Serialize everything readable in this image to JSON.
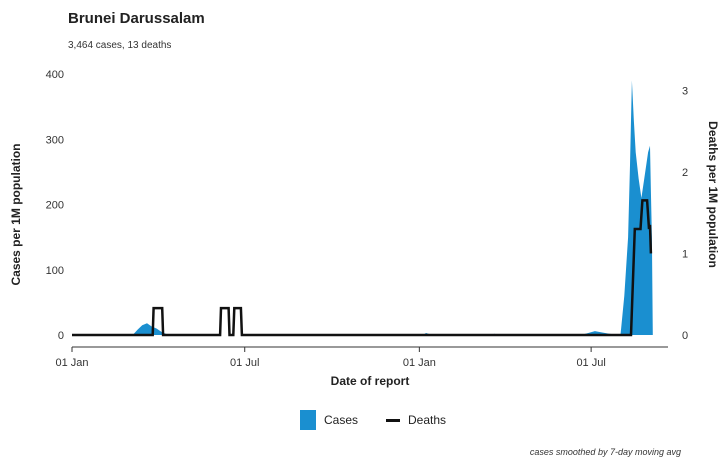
{
  "title": "Brunei Darussalam",
  "subtitle": "3,464 cases, 13 deaths",
  "footnote": "cases smoothed by 7-day moving avg",
  "legend": {
    "cases_label": "Cases",
    "deaths_label": "Deaths"
  },
  "colors": {
    "cases": "#1a8fd0",
    "deaths": "#111111",
    "axis": "#333333"
  },
  "chart_data": {
    "type": "area",
    "xlabel": "Date of report",
    "ylabel_left": "Cases per 1M population",
    "ylabel_right": "Deaths per 1M population",
    "x_domain": [
      "2020-01-01",
      "2021-09-20"
    ],
    "ylim_left": [
      0,
      400
    ],
    "ylim_right": [
      0,
      3.2
    ],
    "yticks_left": [
      0,
      100,
      200,
      300,
      400
    ],
    "yticks_right": [
      0,
      1,
      2,
      3
    ],
    "xticks": [
      {
        "date": "2020-01-01",
        "label": "01 Jan"
      },
      {
        "date": "2020-07-01",
        "label": "01 Jul"
      },
      {
        "date": "2021-01-01",
        "label": "01 Jan"
      },
      {
        "date": "2021-07-01",
        "label": "01 Jul"
      }
    ],
    "series": [
      {
        "name": "Cases",
        "axis": "left",
        "kind": "area",
        "points": [
          [
            "2020-01-01",
            0
          ],
          [
            "2020-03-05",
            0
          ],
          [
            "2020-03-10",
            8
          ],
          [
            "2020-03-15",
            15
          ],
          [
            "2020-03-20",
            18
          ],
          [
            "2020-03-25",
            13
          ],
          [
            "2020-03-30",
            10
          ],
          [
            "2020-04-05",
            4
          ],
          [
            "2020-04-12",
            0
          ],
          [
            "2021-01-05",
            0
          ],
          [
            "2021-01-08",
            3
          ],
          [
            "2021-01-12",
            1
          ],
          [
            "2021-01-16",
            0
          ],
          [
            "2021-03-18",
            0
          ],
          [
            "2021-03-21",
            2
          ],
          [
            "2021-03-24",
            0
          ],
          [
            "2021-06-20",
            0
          ],
          [
            "2021-06-28",
            3
          ],
          [
            "2021-07-05",
            6
          ],
          [
            "2021-07-12",
            4
          ],
          [
            "2021-07-20",
            2
          ],
          [
            "2021-08-01",
            0
          ],
          [
            "2021-08-05",
            60
          ],
          [
            "2021-08-09",
            150
          ],
          [
            "2021-08-11",
            260
          ],
          [
            "2021-08-13",
            390
          ],
          [
            "2021-08-15",
            330
          ],
          [
            "2021-08-17",
            280
          ],
          [
            "2021-08-20",
            240
          ],
          [
            "2021-08-23",
            210
          ],
          [
            "2021-08-26",
            240
          ],
          [
            "2021-08-30",
            280
          ],
          [
            "2021-09-01",
            290
          ],
          [
            "2021-09-02",
            220
          ],
          [
            "2021-09-03",
            150
          ],
          [
            "2021-09-04",
            0
          ]
        ]
      },
      {
        "name": "Deaths",
        "axis": "right",
        "kind": "line",
        "points": [
          [
            "2020-01-01",
            0
          ],
          [
            "2020-03-26",
            0
          ],
          [
            "2020-03-27",
            0.33
          ],
          [
            "2020-04-05",
            0.33
          ],
          [
            "2020-04-06",
            0
          ],
          [
            "2020-06-05",
            0
          ],
          [
            "2020-06-06",
            0.33
          ],
          [
            "2020-06-14",
            0.33
          ],
          [
            "2020-06-15",
            0
          ],
          [
            "2020-06-19",
            0
          ],
          [
            "2020-06-20",
            0.33
          ],
          [
            "2020-06-27",
            0.33
          ],
          [
            "2020-06-28",
            0
          ],
          [
            "2021-08-05",
            0
          ],
          [
            "2021-08-12",
            0
          ],
          [
            "2021-08-16",
            1.3
          ],
          [
            "2021-08-22",
            1.3
          ],
          [
            "2021-08-24",
            1.65
          ],
          [
            "2021-08-29",
            1.65
          ],
          [
            "2021-08-31",
            1.3
          ],
          [
            "2021-09-01",
            1.35
          ],
          [
            "2021-09-02",
            1.0
          ]
        ]
      }
    ]
  }
}
